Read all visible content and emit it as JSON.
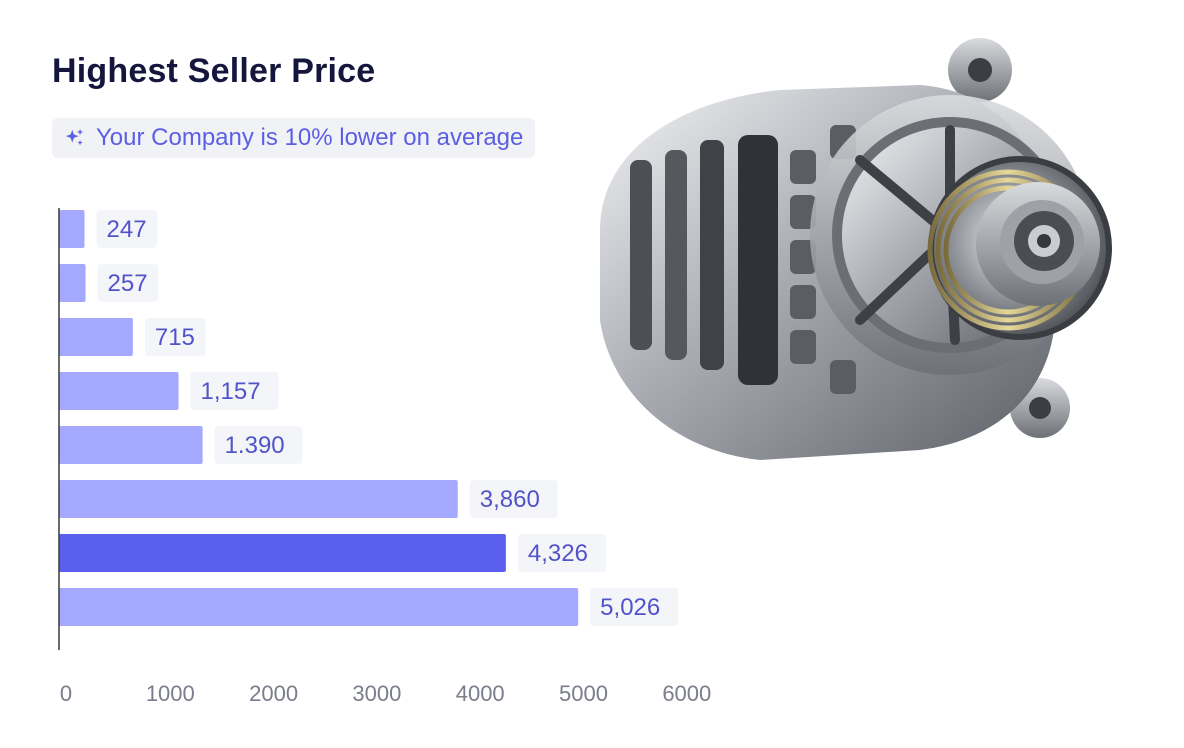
{
  "header": {
    "title": "Highest Seller Price",
    "subtitle": "Your Company is 10% lower on average",
    "subtitle_icon": "sparkle-icon"
  },
  "image": {
    "subject": "alternator",
    "icon": "alternator-photo"
  },
  "colors": {
    "bar": "#a4a8ff",
    "bar_highlight": "#5b5fee",
    "label_text": "#5153c9",
    "title_text": "#14163d",
    "axis_line": "#3a3a3a"
  },
  "chart_data": {
    "type": "bar",
    "orientation": "horizontal",
    "title": "Highest Seller Price",
    "subtitle": "Your Company is 10% lower on average",
    "values": [
      247,
      257,
      715,
      1157,
      1390,
      3860,
      4326,
      5026
    ],
    "data_labels": [
      "247",
      "257",
      "715",
      "1,157",
      "1.390",
      "3,860",
      "4,326",
      "5,026"
    ],
    "highlight_index": 6,
    "xlim": [
      0,
      6000
    ],
    "xticks": [
      0,
      1000,
      2000,
      3000,
      4000,
      5000,
      6000
    ],
    "xtick_labels": [
      "0",
      "1000",
      "2000",
      "3000",
      "4000",
      "5000",
      "6000"
    ],
    "grid": false,
    "legend": "none"
  }
}
